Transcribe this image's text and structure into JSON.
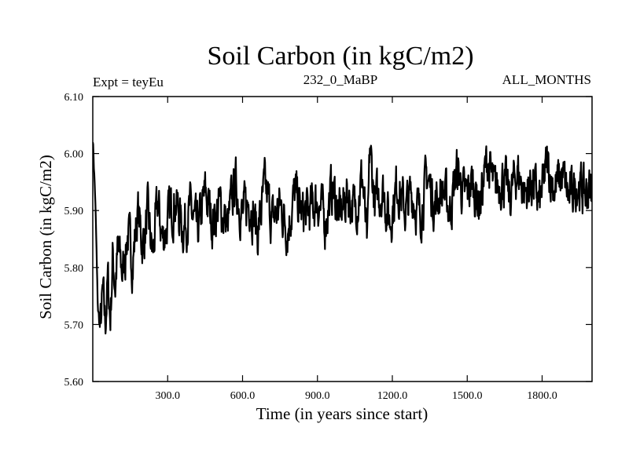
{
  "chart_data": {
    "type": "line",
    "title": "Soil Carbon (in kgC/m2)",
    "subtitle_left": "Expt = teyEu",
    "subtitle_center": "232_0_MaBP",
    "subtitle_right": "ALL_MONTHS",
    "xlabel": "Time (in years since start)",
    "ylabel": "Soil Carbon (in kgC/m2)",
    "xlim": [
      0,
      2000
    ],
    "ylim": [
      5.6,
      6.1
    ],
    "x_ticks": [
      300,
      600,
      900,
      1200,
      1500,
      1800
    ],
    "x_tick_labels": [
      "300.0",
      "600.0",
      "900.0",
      "1200.0",
      "1500.0",
      "1800.0"
    ],
    "y_ticks": [
      5.6,
      5.7,
      5.8,
      5.9,
      6.0,
      6.1
    ],
    "y_tick_labels": [
      "5.60",
      "5.70",
      "5.80",
      "5.90",
      "6.00",
      "6.10"
    ],
    "series": [
      {
        "name": "Soil Carbon",
        "color": "#000000",
        "x": [
          0,
          10,
          20,
          30,
          40,
          50,
          60,
          70,
          80,
          90,
          100,
          120,
          140,
          160,
          180,
          200,
          220,
          240,
          260,
          280,
          300,
          330,
          360,
          390,
          420,
          450,
          480,
          510,
          540,
          570,
          600,
          630,
          660,
          690,
          720,
          750,
          780,
          810,
          840,
          870,
          900,
          930,
          960,
          990,
          1020,
          1050,
          1080,
          1100,
          1110,
          1130,
          1160,
          1190,
          1220,
          1250,
          1280,
          1310,
          1340,
          1370,
          1400,
          1430,
          1460,
          1490,
          1520,
          1550,
          1580,
          1610,
          1640,
          1670,
          1700,
          1730,
          1760,
          1790,
          1820,
          1850,
          1880,
          1910,
          1940,
          1970,
          2000
        ],
        "y": [
          6.03,
          5.92,
          5.73,
          5.69,
          5.75,
          5.7,
          5.78,
          5.71,
          5.82,
          5.77,
          5.83,
          5.79,
          5.86,
          5.81,
          5.9,
          5.84,
          5.89,
          5.82,
          5.91,
          5.85,
          5.88,
          5.92,
          5.87,
          5.9,
          5.86,
          5.93,
          5.88,
          5.91,
          5.87,
          5.95,
          5.89,
          5.92,
          5.86,
          5.94,
          5.88,
          5.91,
          5.87,
          5.93,
          5.89,
          5.9,
          5.92,
          5.88,
          5.94,
          5.89,
          5.93,
          5.9,
          5.96,
          5.83,
          6.01,
          5.91,
          5.94,
          5.88,
          5.95,
          5.9,
          5.93,
          5.89,
          5.96,
          5.91,
          5.94,
          5.9,
          5.97,
          5.92,
          5.95,
          5.91,
          5.99,
          5.93,
          5.96,
          5.92,
          5.97,
          5.93,
          5.95,
          5.91,
          5.98,
          5.94,
          5.96,
          5.92,
          5.95,
          5.93,
          5.94
        ]
      }
    ],
    "grid": false,
    "legend": "none"
  }
}
